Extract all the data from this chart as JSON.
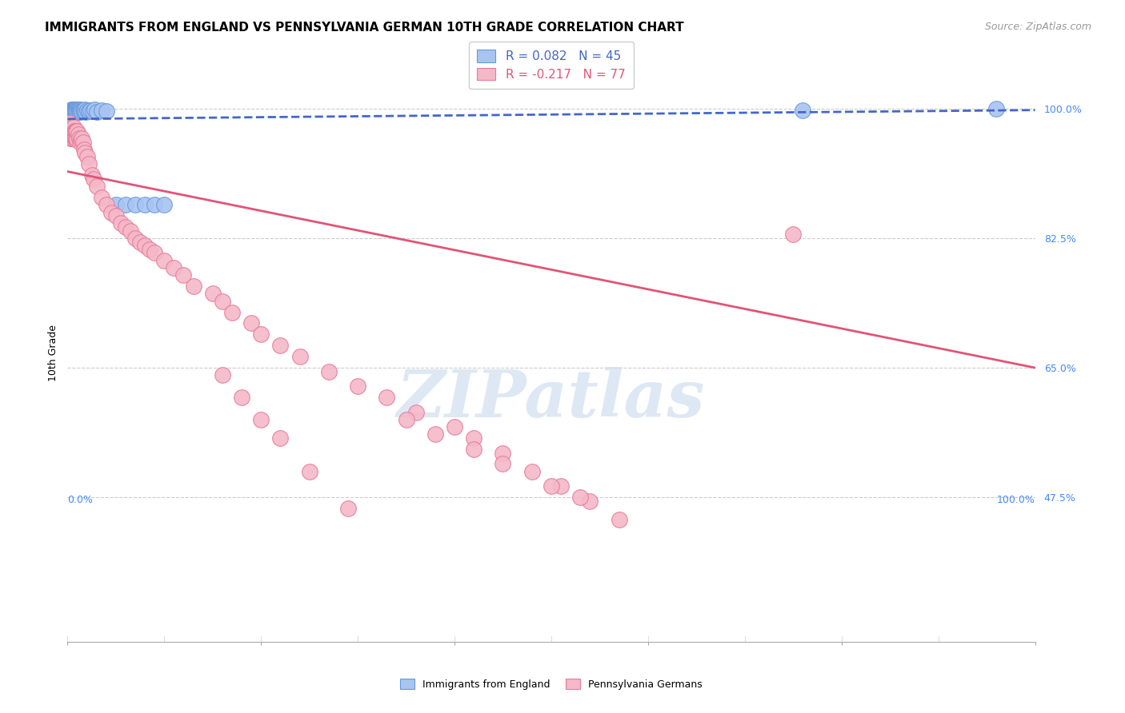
{
  "title": "IMMIGRANTS FROM ENGLAND VS PENNSYLVANIA GERMAN 10TH GRADE CORRELATION CHART",
  "source": "Source: ZipAtlas.com",
  "ylabel": "10th Grade",
  "R_blue": 0.082,
  "N_blue": 45,
  "R_pink": -0.217,
  "N_pink": 77,
  "blue_color": "#a8c4f0",
  "pink_color": "#f4b8c8",
  "blue_edge_color": "#6699dd",
  "pink_edge_color": "#e87a99",
  "blue_line_color": "#4466cc",
  "pink_line_color": "#e05577",
  "background_color": "#ffffff",
  "grid_color": "#cccccc",
  "ytick_color": "#4488ff",
  "xtick_color": "#4488ff",
  "title_fontsize": 11,
  "source_fontsize": 9,
  "tick_fontsize": 9,
  "legend_fontsize": 11,
  "ylabel_fontsize": 9,
  "watermark_text": "ZIPatlas",
  "watermark_color": "#d0dff0",
  "xlim": [
    0.0,
    1.0
  ],
  "ylim": [
    0.28,
    1.06
  ],
  "ytick_values": [
    1.0,
    0.825,
    0.65,
    0.475
  ],
  "ytick_labels": [
    "100.0%",
    "82.5%",
    "65.0%",
    "47.5%"
  ],
  "blue_line_x0": 0.0,
  "blue_line_x1": 1.0,
  "blue_line_y0": 0.986,
  "blue_line_y1": 0.998,
  "pink_line_x0": 0.0,
  "pink_line_x1": 1.0,
  "pink_line_y0": 0.915,
  "pink_line_y1": 0.65,
  "blue_scatter_x": [
    0.002,
    0.003,
    0.004,
    0.004,
    0.005,
    0.005,
    0.006,
    0.006,
    0.007,
    0.007,
    0.007,
    0.008,
    0.008,
    0.009,
    0.009,
    0.01,
    0.01,
    0.011,
    0.011,
    0.012,
    0.012,
    0.013,
    0.013,
    0.014,
    0.015,
    0.016,
    0.017,
    0.018,
    0.019,
    0.02,
    0.022,
    0.024,
    0.026,
    0.028,
    0.03,
    0.035,
    0.04,
    0.05,
    0.06,
    0.07,
    0.08,
    0.09,
    0.1,
    0.76,
    0.96
  ],
  "blue_scatter_y": [
    0.998,
    0.996,
    0.999,
    0.997,
    0.998,
    0.996,
    0.999,
    0.997,
    0.999,
    0.998,
    0.997,
    0.998,
    0.997,
    0.999,
    0.996,
    0.998,
    0.997,
    0.999,
    0.996,
    0.998,
    0.997,
    0.999,
    0.996,
    0.998,
    0.997,
    0.998,
    0.997,
    0.999,
    0.996,
    0.998,
    0.997,
    0.998,
    0.997,
    0.999,
    0.996,
    0.998,
    0.997,
    0.87,
    0.87,
    0.87,
    0.87,
    0.87,
    0.87,
    0.998,
    1.0
  ],
  "pink_scatter_x": [
    0.002,
    0.003,
    0.003,
    0.004,
    0.004,
    0.005,
    0.005,
    0.006,
    0.006,
    0.007,
    0.007,
    0.008,
    0.008,
    0.009,
    0.009,
    0.01,
    0.01,
    0.011,
    0.012,
    0.013,
    0.014,
    0.015,
    0.016,
    0.017,
    0.018,
    0.02,
    0.022,
    0.025,
    0.027,
    0.03,
    0.035,
    0.04,
    0.045,
    0.05,
    0.055,
    0.06,
    0.065,
    0.07,
    0.075,
    0.08,
    0.085,
    0.09,
    0.1,
    0.11,
    0.12,
    0.13,
    0.15,
    0.16,
    0.17,
    0.19,
    0.2,
    0.22,
    0.24,
    0.27,
    0.3,
    0.33,
    0.36,
    0.4,
    0.42,
    0.45,
    0.48,
    0.51,
    0.54,
    0.57,
    0.35,
    0.38,
    0.42,
    0.45,
    0.5,
    0.53,
    0.16,
    0.18,
    0.2,
    0.22,
    0.25,
    0.29,
    0.75
  ],
  "pink_scatter_y": [
    0.98,
    0.97,
    0.96,
    0.975,
    0.965,
    0.97,
    0.96,
    0.975,
    0.965,
    0.97,
    0.96,
    0.97,
    0.96,
    0.97,
    0.96,
    0.97,
    0.958,
    0.965,
    0.96,
    0.955,
    0.958,
    0.96,
    0.955,
    0.945,
    0.94,
    0.935,
    0.925,
    0.91,
    0.905,
    0.895,
    0.88,
    0.87,
    0.86,
    0.855,
    0.845,
    0.84,
    0.835,
    0.825,
    0.82,
    0.815,
    0.81,
    0.805,
    0.795,
    0.785,
    0.775,
    0.76,
    0.75,
    0.74,
    0.725,
    0.71,
    0.695,
    0.68,
    0.665,
    0.645,
    0.625,
    0.61,
    0.59,
    0.57,
    0.555,
    0.535,
    0.51,
    0.49,
    0.47,
    0.445,
    0.58,
    0.56,
    0.54,
    0.52,
    0.49,
    0.475,
    0.64,
    0.61,
    0.58,
    0.555,
    0.51,
    0.46,
    0.83
  ]
}
